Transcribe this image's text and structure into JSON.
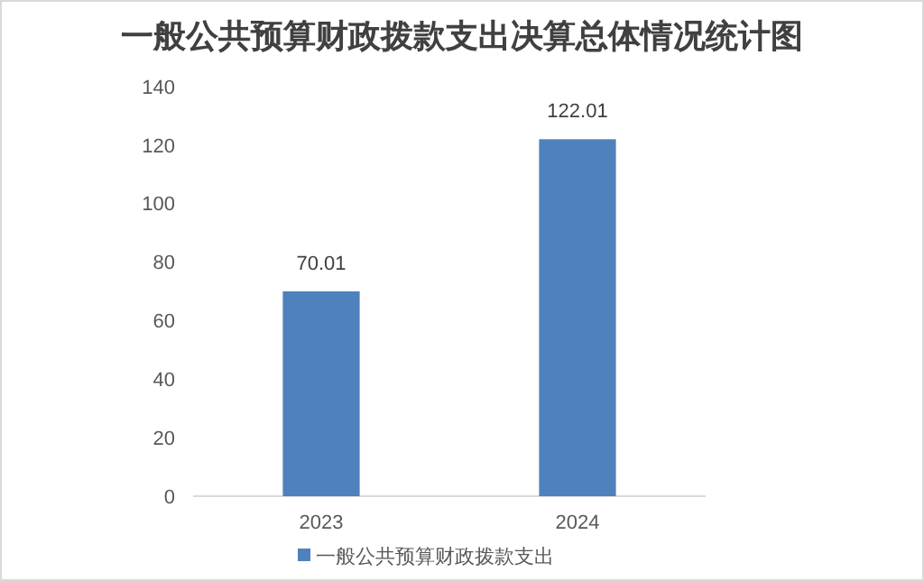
{
  "chart_data": {
    "type": "bar",
    "title": "一般公共预算财政拨款支出决算总体情况统计图",
    "categories": [
      "2023",
      "2024"
    ],
    "series": [
      {
        "name": "一般公共预算财政拨款支出",
        "color": "#4f81bd",
        "values": [
          70.01,
          122.01
        ]
      }
    ],
    "ylim": [
      0,
      140
    ],
    "yticks": [
      0,
      20,
      40,
      60,
      80,
      100,
      120,
      140
    ],
    "grid": false,
    "data_labels": true,
    "legend": "bottom"
  }
}
